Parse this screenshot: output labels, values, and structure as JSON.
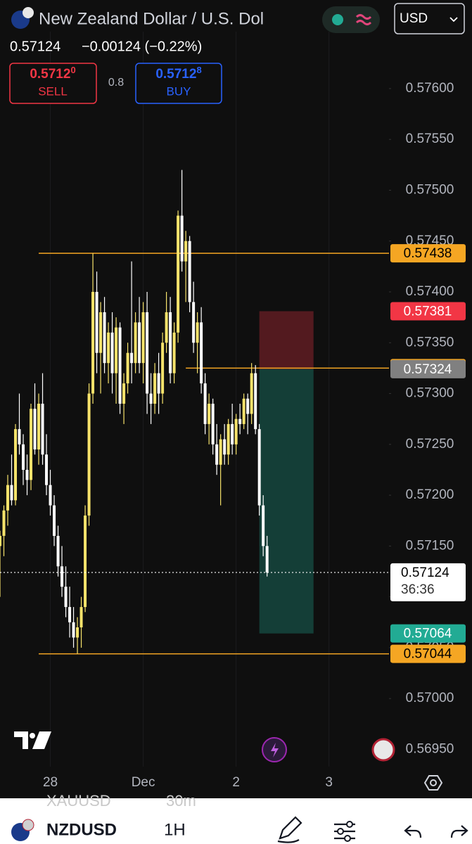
{
  "header": {
    "title": "New Zealand Dollar / U.S. Dol",
    "price": "0.57124",
    "change": "−0.00124 (−0.22%)",
    "currency": "USD"
  },
  "trade": {
    "sell_price": "0.5712",
    "sell_pip": "0",
    "sell_label": "SELL",
    "spread": "0.8",
    "buy_price": "0.5712",
    "buy_pip": "8",
    "buy_label": "BUY"
  },
  "chart_data": {
    "type": "candlestick",
    "up_color": "#f7e36b",
    "down_color": "#ffffff",
    "x": [
      -1,
      0,
      1,
      2,
      3,
      4,
      5,
      6,
      7,
      8,
      9,
      10,
      11,
      12,
      13,
      14,
      15,
      16,
      17,
      18,
      19,
      20,
      21,
      22,
      23,
      24,
      25,
      26,
      27,
      28,
      29,
      30,
      31,
      32,
      33,
      34,
      35,
      36,
      37,
      38,
      39,
      40,
      41,
      42,
      43,
      44,
      45,
      46,
      47,
      48,
      49,
      50,
      51,
      52,
      53,
      54,
      55,
      56,
      57,
      58,
      59,
      60,
      61,
      62,
      63,
      64,
      65,
      66,
      67,
      68
    ],
    "ohlc": [
      [
        0.5715,
        0.57165,
        0.571,
        0.5716
      ],
      [
        0.5716,
        0.5719,
        0.5714,
        0.57185
      ],
      [
        0.57185,
        0.5722,
        0.5717,
        0.5721
      ],
      [
        0.5721,
        0.5724,
        0.5719,
        0.57195
      ],
      [
        0.57195,
        0.5727,
        0.5719,
        0.57265
      ],
      [
        0.57265,
        0.573,
        0.5724,
        0.5725
      ],
      [
        0.5725,
        0.5726,
        0.5721,
        0.57225
      ],
      [
        0.57225,
        0.5724,
        0.572,
        0.57215
      ],
      [
        0.57215,
        0.5729,
        0.57205,
        0.57285
      ],
      [
        0.57285,
        0.5731,
        0.5724,
        0.57245
      ],
      [
        0.57245,
        0.573,
        0.5723,
        0.5729
      ],
      [
        0.5729,
        0.5732,
        0.5723,
        0.5724
      ],
      [
        0.5724,
        0.5726,
        0.572,
        0.5721
      ],
      [
        0.5721,
        0.57225,
        0.5718,
        0.5719
      ],
      [
        0.5719,
        0.572,
        0.5715,
        0.5716
      ],
      [
        0.5716,
        0.5717,
        0.5712,
        0.5713
      ],
      [
        0.5713,
        0.5715,
        0.571,
        0.5711
      ],
      [
        0.5711,
        0.5713,
        0.5708,
        0.5709
      ],
      [
        0.5709,
        0.5711,
        0.5706,
        0.57075
      ],
      [
        0.57075,
        0.5709,
        0.5705,
        0.5706
      ],
      [
        0.5706,
        0.5708,
        0.57044,
        0.5707
      ],
      [
        0.5707,
        0.571,
        0.5705,
        0.5709
      ],
      [
        0.5709,
        0.5719,
        0.57085,
        0.5718
      ],
      [
        0.5718,
        0.5731,
        0.5717,
        0.573
      ],
      [
        0.573,
        0.57438,
        0.5729,
        0.574
      ],
      [
        0.574,
        0.5742,
        0.5732,
        0.5734
      ],
      [
        0.5734,
        0.5739,
        0.573,
        0.5738
      ],
      [
        0.5738,
        0.57395,
        0.5732,
        0.5733
      ],
      [
        0.5733,
        0.5737,
        0.5731,
        0.5736
      ],
      [
        0.5736,
        0.5738,
        0.573,
        0.5732
      ],
      [
        0.5732,
        0.57375,
        0.5729,
        0.57365
      ],
      [
        0.57365,
        0.5737,
        0.5728,
        0.5729
      ],
      [
        0.5729,
        0.5732,
        0.5727,
        0.5731
      ],
      [
        0.5731,
        0.5735,
        0.573,
        0.5734
      ],
      [
        0.5734,
        0.5743,
        0.5731,
        0.5733
      ],
      [
        0.5733,
        0.5738,
        0.5732,
        0.5737
      ],
      [
        0.5737,
        0.57395,
        0.5732,
        0.5733
      ],
      [
        0.5733,
        0.5739,
        0.5731,
        0.5738
      ],
      [
        0.5738,
        0.574,
        0.5728,
        0.573
      ],
      [
        0.573,
        0.5732,
        0.5727,
        0.5729
      ],
      [
        0.5729,
        0.5733,
        0.5728,
        0.5732
      ],
      [
        0.5732,
        0.5734,
        0.5728,
        0.573
      ],
      [
        0.573,
        0.5736,
        0.5729,
        0.5735
      ],
      [
        0.5735,
        0.574,
        0.5734,
        0.5738
      ],
      [
        0.5738,
        0.57395,
        0.5731,
        0.5732
      ],
      [
        0.5732,
        0.5737,
        0.5731,
        0.5736
      ],
      [
        0.5736,
        0.5748,
        0.5735,
        0.57475
      ],
      [
        0.57475,
        0.5752,
        0.5742,
        0.5743
      ],
      [
        0.5743,
        0.5746,
        0.5739,
        0.5745
      ],
      [
        0.5745,
        0.57455,
        0.5738,
        0.5739
      ],
      [
        0.5739,
        0.5741,
        0.5734,
        0.5735
      ],
      [
        0.5735,
        0.5738,
        0.5732,
        0.5737
      ],
      [
        0.5737,
        0.57385,
        0.573,
        0.5731
      ],
      [
        0.5731,
        0.5732,
        0.5726,
        0.5727
      ],
      [
        0.5727,
        0.573,
        0.5725,
        0.5729
      ],
      [
        0.5729,
        0.57295,
        0.5724,
        0.5725
      ],
      [
        0.5725,
        0.5727,
        0.5722,
        0.5723
      ],
      [
        0.5723,
        0.5726,
        0.5719,
        0.57255
      ],
      [
        0.57255,
        0.5727,
        0.5723,
        0.5724
      ],
      [
        0.5724,
        0.57275,
        0.5723,
        0.5727
      ],
      [
        0.5727,
        0.5729,
        0.5724,
        0.5725
      ],
      [
        0.5725,
        0.5728,
        0.5724,
        0.57275
      ],
      [
        0.57275,
        0.5729,
        0.5726,
        0.5727
      ],
      [
        0.5727,
        0.573,
        0.57265,
        0.57295
      ],
      [
        0.57295,
        0.573,
        0.5726,
        0.5728
      ],
      [
        0.5728,
        0.5733,
        0.5727,
        0.5732
      ],
      [
        0.5732,
        0.57328,
        0.5726,
        0.57265
      ],
      [
        0.57265,
        0.5727,
        0.5718,
        0.5719
      ],
      [
        0.5719,
        0.572,
        0.5714,
        0.5715
      ],
      [
        0.5715,
        0.5716,
        0.5712,
        0.57124
      ]
    ],
    "xlim": [
      -1,
      99.5
    ],
    "xticks": [
      {
        "value": 12,
        "label": "28"
      },
      {
        "value": 36,
        "label": "Dec"
      },
      {
        "value": 60,
        "label": "2"
      },
      {
        "value": 84,
        "label": "3"
      }
    ],
    "ylim": [
      0.56933,
      0.57656
    ],
    "yticks": [
      {
        "value": 0.576,
        "label": "0.57600"
      },
      {
        "value": 0.5755,
        "label": "0.57550"
      },
      {
        "value": 0.575,
        "label": "0.57500"
      },
      {
        "value": 0.5745,
        "label": "0.57450"
      },
      {
        "value": 0.574,
        "label": "0.57400"
      },
      {
        "value": 0.5735,
        "label": "0.57350"
      },
      {
        "value": 0.573,
        "label": "0.57300"
      },
      {
        "value": 0.5725,
        "label": "0.57250"
      },
      {
        "value": 0.572,
        "label": "0.57200"
      },
      {
        "value": 0.5715,
        "label": "0.57150"
      },
      {
        "value": 0.571,
        "label": "0.57100"
      },
      {
        "value": 0.5705,
        "label": "0.57050"
      },
      {
        "value": 0.57,
        "label": "0.57000"
      },
      {
        "value": 0.5695,
        "label": "0.56950"
      }
    ],
    "levels": [
      {
        "value": 0.57438,
        "from": 9,
        "color": "#f5a623",
        "text_color": "#000000"
      },
      {
        "value": 0.57325,
        "from": 47,
        "color": "#f5a623",
        "text_color": "#000000"
      },
      {
        "value": 0.57044,
        "from": 9,
        "color": "#f5a623",
        "text_color": "#000000"
      }
    ],
    "position": {
      "entry": 0.57324,
      "stop": 0.57381,
      "target": 0.57064,
      "x": [
        66,
        80
      ],
      "entry_color": "#808080",
      "stop_color": "#f23645",
      "target_color": "#22ab94"
    },
    "last_price": 0.57124,
    "countdown": "36:36"
  },
  "footer": {
    "ghost_symbol": "XAUUSD",
    "ghost_interval": "30m",
    "symbol": "NZDUSD",
    "interval": "1H"
  }
}
